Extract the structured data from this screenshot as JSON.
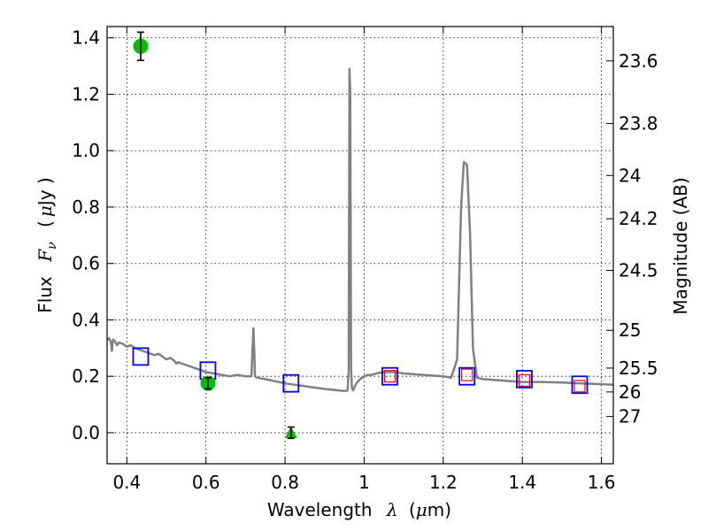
{
  "chart_data": {
    "type": "scatter",
    "xlabel_text": "Wavelength",
    "xlabel_symbol": "λ",
    "xlabel_unit_open": "(",
    "xlabel_unit_mu": "μ",
    "xlabel_unit_rest": "m)",
    "ylabel_text": "Flux",
    "ylabel_symbol": "F",
    "ylabel_sub": "ν",
    "ylabel_unit_open": "(",
    "ylabel_unit_mu": "μ",
    "ylabel_unit_rest": "Jy )",
    "y2label": "Magnitude (AB)",
    "xlim": [
      0.35,
      1.63
    ],
    "ylim": [
      -0.11,
      1.44
    ],
    "grid": true,
    "x_ticks": [
      0.4,
      0.6,
      0.8,
      1.0,
      1.2,
      1.4,
      1.6
    ],
    "x_tick_labels": [
      "0.4",
      "0.6",
      "0.8",
      "1",
      "1.2",
      "1.4",
      "1.6"
    ],
    "y_ticks": [
      0.0,
      0.2,
      0.4,
      0.6,
      0.8,
      1.0,
      1.2,
      1.4
    ],
    "y_tick_labels": [
      "0.0",
      "0.2",
      "0.4",
      "0.6",
      "0.8",
      "1.0",
      "1.2",
      "1.4"
    ],
    "y2_ticks": [
      23.6,
      23.8,
      24,
      24.2,
      24.5,
      25,
      25.5,
      26,
      27
    ],
    "y2_tick_labels": [
      "23.6",
      "23.8",
      "24",
      "24.2",
      "24.5",
      "25",
      "25.5",
      "26",
      "27"
    ],
    "spectrum": {
      "name": "model spectrum",
      "color": "#808080",
      "x": [
        0.35,
        0.355,
        0.36,
        0.362,
        0.365,
        0.37,
        0.375,
        0.38,
        0.39,
        0.4,
        0.41,
        0.42,
        0.43,
        0.44,
        0.45,
        0.46,
        0.47,
        0.48,
        0.49,
        0.5,
        0.51,
        0.52,
        0.525,
        0.53,
        0.54,
        0.55,
        0.56,
        0.57,
        0.58,
        0.59,
        0.6,
        0.62,
        0.64,
        0.66,
        0.68,
        0.7,
        0.715,
        0.72,
        0.722,
        0.724,
        0.73,
        0.75,
        0.8,
        0.85,
        0.9,
        0.95,
        0.958,
        0.961,
        0.963,
        0.965,
        0.967,
        0.969,
        0.972,
        0.98,
        0.99,
        1.0,
        1.01,
        1.02,
        1.03,
        1.05,
        1.08,
        1.1,
        1.15,
        1.2,
        1.22,
        1.235,
        1.245,
        1.252,
        1.26,
        1.268,
        1.275,
        1.285,
        1.3,
        1.35,
        1.4,
        1.45,
        1.5,
        1.55,
        1.6,
        1.63
      ],
      "y": [
        0.33,
        0.335,
        0.32,
        0.29,
        0.33,
        0.325,
        0.31,
        0.32,
        0.315,
        0.305,
        0.31,
        0.3,
        0.295,
        0.29,
        0.285,
        0.28,
        0.275,
        0.28,
        0.27,
        0.26,
        0.265,
        0.255,
        0.245,
        0.25,
        0.245,
        0.24,
        0.235,
        0.23,
        0.225,
        0.22,
        0.215,
        0.21,
        0.205,
        0.2,
        0.205,
        0.2,
        0.2,
        0.37,
        0.3,
        0.2,
        0.195,
        0.19,
        0.175,
        0.165,
        0.155,
        0.148,
        0.15,
        0.22,
        1.29,
        1.2,
        0.23,
        0.16,
        0.15,
        0.175,
        0.19,
        0.2,
        0.205,
        0.205,
        0.21,
        0.215,
        0.215,
        0.21,
        0.205,
        0.2,
        0.195,
        0.26,
        0.8,
        0.96,
        0.95,
        0.7,
        0.3,
        0.195,
        0.19,
        0.185,
        0.18,
        0.18,
        0.178,
        0.175,
        0.172,
        0.17
      ]
    },
    "series": [
      {
        "name": "blue squares",
        "marker": "open-square",
        "color": "#0000ff",
        "x": [
          0.435,
          0.605,
          0.815,
          1.065,
          1.26,
          1.405,
          1.545
        ],
        "y": [
          0.27,
          0.22,
          0.175,
          0.2,
          0.2,
          0.19,
          0.17
        ]
      },
      {
        "name": "red squares",
        "marker": "open-square-small",
        "color": "#ff0000",
        "x": [
          1.065,
          1.26,
          1.405,
          1.545
        ],
        "y": [
          0.2,
          0.205,
          0.185,
          0.165
        ]
      },
      {
        "name": "green circles",
        "marker": "circle",
        "color": "#00c000",
        "x": [
          0.435,
          0.605
        ],
        "y": [
          1.37,
          0.175
        ],
        "yerr": [
          0.05,
          0.02
        ]
      },
      {
        "name": "green triangle",
        "marker": "triangle",
        "color": "#00c000",
        "x": [
          0.815
        ],
        "y": [
          0.0
        ],
        "yerr": [
          0.02
        ]
      }
    ]
  }
}
